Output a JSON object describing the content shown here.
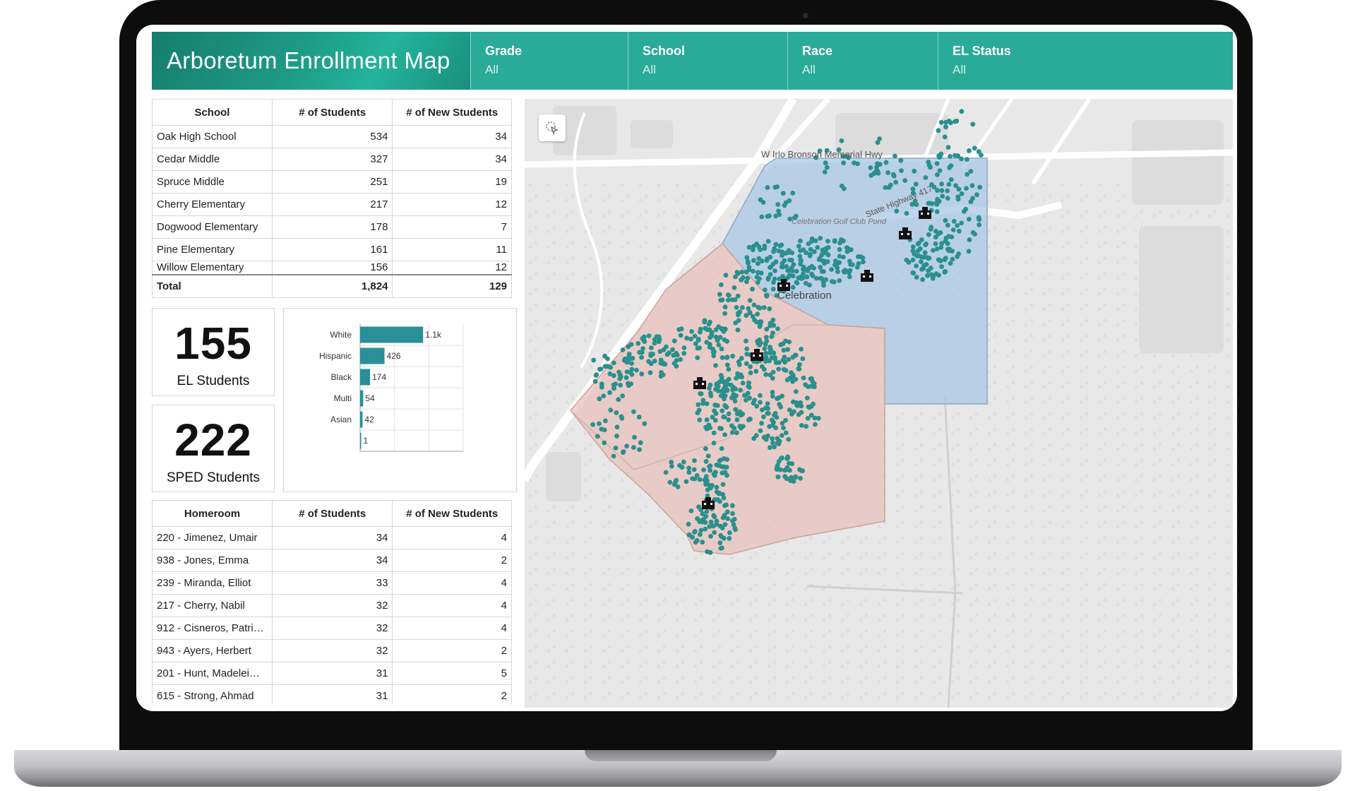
{
  "app": {
    "title": "Arboretum Enrollment Map"
  },
  "filters": [
    {
      "label": "Grade",
      "value": "All"
    },
    {
      "label": "School",
      "value": "All"
    },
    {
      "label": "Race",
      "value": "All"
    },
    {
      "label": "EL Status",
      "value": "All"
    }
  ],
  "school_table": {
    "headers": [
      "School",
      "# of Students",
      "# of New Students"
    ],
    "rows": [
      [
        "Oak High School",
        "534",
        "34"
      ],
      [
        "Cedar Middle",
        "327",
        "34"
      ],
      [
        "Spruce Middle",
        "251",
        "19"
      ],
      [
        "Cherry Elementary",
        "217",
        "12"
      ],
      [
        "Dogwood Elementary",
        "178",
        "7"
      ],
      [
        "Pine Elementary",
        "161",
        "11"
      ],
      [
        "Willow Elementary",
        "156",
        "12"
      ]
    ],
    "total": [
      "Total",
      "1,824",
      "129"
    ]
  },
  "kpis": {
    "el": {
      "value": "155",
      "label": "EL Students"
    },
    "sped": {
      "value": "222",
      "label": "SPED Students"
    }
  },
  "chart_data": {
    "type": "bar",
    "orientation": "horizontal",
    "categories": [
      "White",
      "Hispanic",
      "Black",
      "Multi",
      "Asian",
      ""
    ],
    "values": [
      1100,
      426,
      174,
      54,
      42,
      1
    ],
    "data_labels": [
      "1.1k",
      "426",
      "174",
      "54",
      "42",
      "1"
    ],
    "bar_color": "#2a8f99",
    "grid": true,
    "legend": "none"
  },
  "homeroom_table": {
    "headers": [
      "Homeroom",
      "# of Students",
      "# of New Students"
    ],
    "rows": [
      [
        "220 - Jimenez, Umair",
        "34",
        "4"
      ],
      [
        "938 - Jones, Emma",
        "34",
        "2"
      ],
      [
        "239 - Miranda, Elliot",
        "33",
        "4"
      ],
      [
        "217 - Cherry, Nabil",
        "32",
        "4"
      ],
      [
        "912 - Cisneros, Patri…",
        "32",
        "4"
      ],
      [
        "943 - Ayers, Herbert",
        "32",
        "2"
      ],
      [
        "201 - Hunt, Madelei…",
        "31",
        "5"
      ],
      [
        "615 - Strong, Ahmad",
        "31",
        "2"
      ]
    ]
  },
  "map": {
    "labels": {
      "highway": "W Irlo Bronson Memorial Hwy",
      "state_highway": "State Highway 417",
      "golf_club": "Celebration Golf Club Pond",
      "town": "Celebration"
    },
    "colors": {
      "zone_blue": "#a9c7e4",
      "zone_red": "#e8c1bb",
      "student_dot": "#2a8f8d",
      "school_icon": "#111111"
    },
    "icons": {
      "select_tool": "lasso-select-icon",
      "school": "school-building-icon"
    }
  }
}
